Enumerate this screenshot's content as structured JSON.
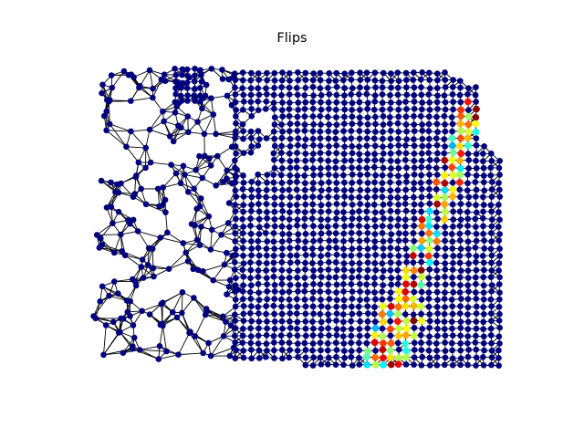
{
  "figure": {
    "title": "Flips",
    "colors": {
      "background": "#ffffff",
      "edge": "#000000",
      "node_default": "#00007f",
      "colormap": "jet"
    }
  }
}
